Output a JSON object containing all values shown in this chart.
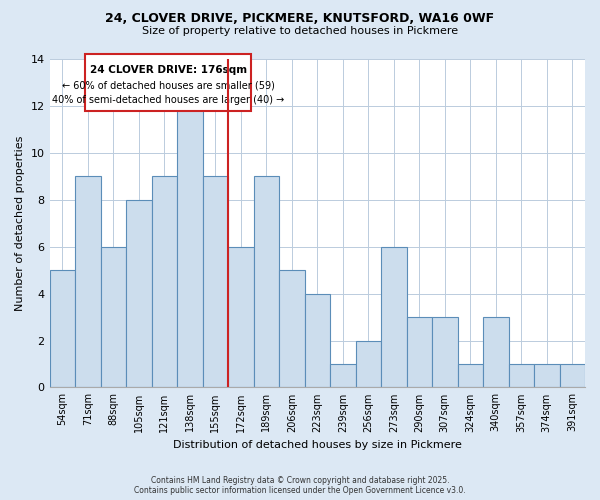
{
  "title": "24, CLOVER DRIVE, PICKMERE, KNUTSFORD, WA16 0WF",
  "subtitle": "Size of property relative to detached houses in Pickmere",
  "xlabel": "Distribution of detached houses by size in Pickmere",
  "ylabel": "Number of detached properties",
  "bin_labels": [
    "54sqm",
    "71sqm",
    "88sqm",
    "105sqm",
    "121sqm",
    "138sqm",
    "155sqm",
    "172sqm",
    "189sqm",
    "206sqm",
    "223sqm",
    "239sqm",
    "256sqm",
    "273sqm",
    "290sqm",
    "307sqm",
    "324sqm",
    "340sqm",
    "357sqm",
    "374sqm",
    "391sqm"
  ],
  "counts": [
    5,
    9,
    6,
    8,
    9,
    12,
    9,
    6,
    9,
    5,
    4,
    1,
    2,
    6,
    3,
    3,
    1,
    3,
    1,
    1,
    1
  ],
  "bar_color": "#ccdded",
  "bar_edge_color": "#5b8db8",
  "vline_index": 7,
  "reference_label": "24 CLOVER DRIVE: 176sqm",
  "annotation_line1": "← 60% of detached houses are smaller (59)",
  "annotation_line2": "40% of semi-detached houses are larger (40) →",
  "vline_color": "#cc2222",
  "background_color": "#dce8f4",
  "plot_bg_color": "#ffffff",
  "ylim": [
    0,
    14
  ],
  "yticks": [
    0,
    2,
    4,
    6,
    8,
    10,
    12,
    14
  ],
  "footer_line1": "Contains HM Land Registry data © Crown copyright and database right 2025.",
  "footer_line2": "Contains public sector information licensed under the Open Government Licence v3.0."
}
